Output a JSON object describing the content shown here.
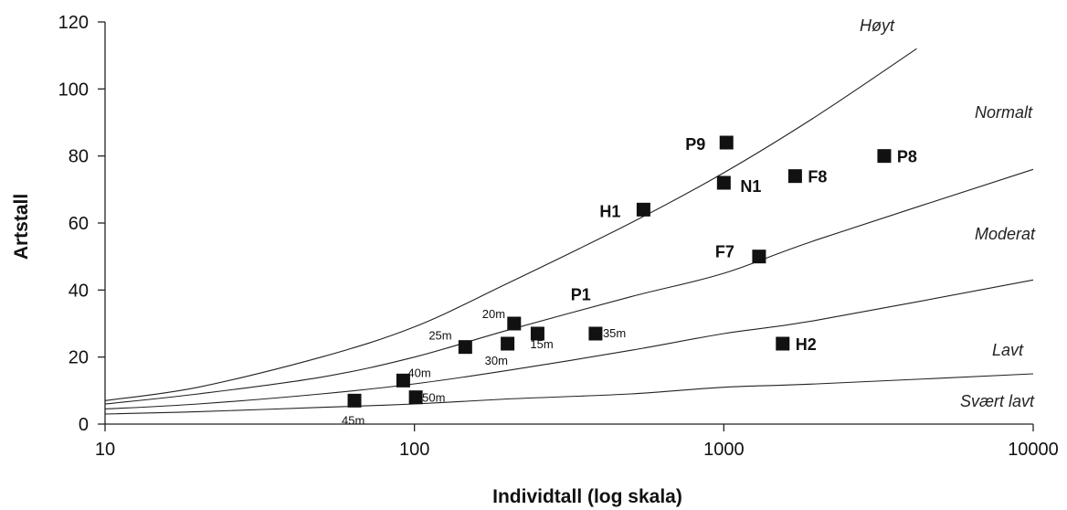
{
  "chart_data": {
    "type": "scatter",
    "xlabel": "Individtall (log skala)",
    "ylabel": "Artstall",
    "x_scale": "log",
    "xlim": [
      10,
      10000
    ],
    "ylim": [
      0,
      120
    ],
    "x_ticks": [
      10,
      100,
      1000,
      10000
    ],
    "y_ticks": [
      0,
      20,
      40,
      60,
      80,
      100,
      120
    ],
    "grid": false,
    "points": [
      {
        "label": "P9",
        "x": 1020,
        "y": 84
      },
      {
        "label": "P8",
        "x": 3300,
        "y": 80
      },
      {
        "label": "F8",
        "x": 1700,
        "y": 74
      },
      {
        "label": "N1",
        "x": 1000,
        "y": 72
      },
      {
        "label": "H1",
        "x": 550,
        "y": 64
      },
      {
        "label": "F7",
        "x": 1300,
        "y": 50
      },
      {
        "label": "H2",
        "x": 1550,
        "y": 24
      },
      {
        "label": "20m",
        "x": 210,
        "y": 30
      },
      {
        "label": "15m",
        "x": 250,
        "y": 27
      },
      {
        "label": "35m",
        "x": 385,
        "y": 27
      },
      {
        "label": "30m",
        "x": 200,
        "y": 24
      },
      {
        "label": "25m",
        "x": 146,
        "y": 23
      },
      {
        "label": "40m",
        "x": 92,
        "y": 13
      },
      {
        "label": "50m",
        "x": 101,
        "y": 8
      },
      {
        "label": "45m",
        "x": 64,
        "y": 7
      }
    ],
    "extra_labels": [
      {
        "text": "P1",
        "x": 320,
        "y": 37
      }
    ],
    "zone_labels": [
      "Høyt",
      "Normalt",
      "Moderat",
      "Lavt",
      "Svært lavt"
    ],
    "reference_curves": [
      {
        "points": [
          [
            10,
            7
          ],
          [
            20,
            11
          ],
          [
            50,
            20
          ],
          [
            100,
            29
          ],
          [
            200,
            42
          ],
          [
            500,
            60
          ],
          [
            1000,
            75
          ],
          [
            2000,
            92
          ],
          [
            4200,
            112
          ]
        ]
      },
      {
        "points": [
          [
            10,
            6
          ],
          [
            20,
            9
          ],
          [
            50,
            14
          ],
          [
            100,
            20
          ],
          [
            200,
            28
          ],
          [
            500,
            38
          ],
          [
            1000,
            45
          ],
          [
            2000,
            55
          ],
          [
            10000,
            76
          ]
        ]
      },
      {
        "points": [
          [
            10,
            4.5
          ],
          [
            20,
            6
          ],
          [
            50,
            9
          ],
          [
            100,
            12
          ],
          [
            200,
            16
          ],
          [
            500,
            22
          ],
          [
            1000,
            27
          ],
          [
            2000,
            31
          ],
          [
            10000,
            43
          ]
        ]
      },
      {
        "points": [
          [
            10,
            3
          ],
          [
            20,
            3.7
          ],
          [
            50,
            5
          ],
          [
            100,
            6
          ],
          [
            200,
            7.5
          ],
          [
            500,
            9
          ],
          [
            1000,
            11
          ],
          [
            2000,
            12
          ],
          [
            10000,
            15
          ]
        ]
      }
    ]
  }
}
